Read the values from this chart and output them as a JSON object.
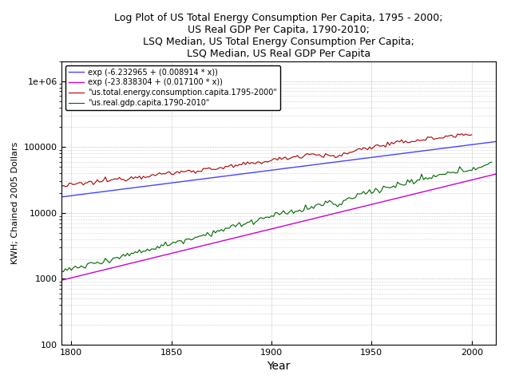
{
  "title": "Log Plot of US Total Energy Consumption Per Capita, 1795 - 2000;\nUS Real GDP Per Capita, 1790-2010;\nLSQ Median, US Total Energy Consumption Per Capita;\nLSQ Median, US Real GDP Per Capita",
  "xlabel": "Year",
  "ylabel": "KWH; Chained 2005 Dollars",
  "xlim": [
    1795,
    2012
  ],
  "ylim": [
    100,
    2000000
  ],
  "xticks": [
    1800,
    1850,
    1900,
    1950,
    2000
  ],
  "yticks": [
    100,
    1000,
    10000,
    100000,
    1000000
  ],
  "energy_color": "#aa0000",
  "gdp_color": "#006600",
  "lsq_energy_color": "#4444ff",
  "lsq_gdp_color": "#cc00cc",
  "lsq_energy_a": -6.232965,
  "lsq_energy_b": 0.008914,
  "lsq_gdp_a": -23.838304,
  "lsq_gdp_b": 0.0171,
  "legend_labels": [
    "\"us.total.energy.consumption.capita.1795-2000\"",
    "\"us.real.gdp.capita.1790-2010\"",
    "exp (-6.232965 + (0.008914 * x))",
    "exp (-23.838304 + (0.017100 * x))"
  ],
  "background_color": "#ffffff",
  "grid_color": "#aaaaaa"
}
